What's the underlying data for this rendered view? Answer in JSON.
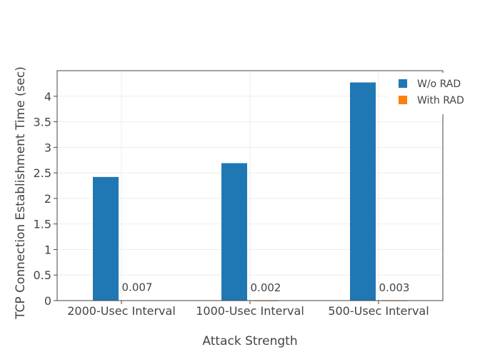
{
  "chart_data": {
    "type": "bar",
    "title": "",
    "xlabel": "Attack Strength",
    "ylabel": "TCP Connection Establishment Time (sec)",
    "categories": [
      "2000-Usec Interval",
      "1000-Usec Interval",
      "500-Usec Interval"
    ],
    "series": [
      {
        "name": "W/o RAD",
        "color": "#1f77b4",
        "values": [
          2.42,
          2.69,
          4.27
        ]
      },
      {
        "name": "With RAD",
        "color": "#ff7f0e",
        "values": [
          0.007,
          0.002,
          0.003
        ]
      }
    ],
    "data_labels": [
      "0.007",
      "0.002",
      "0.003"
    ],
    "ylim": [
      0,
      4.5
    ],
    "yticks": [
      0,
      0.5,
      1,
      1.5,
      2,
      2.5,
      3,
      3.5,
      4
    ],
    "ytick_labels": [
      "0",
      "0.5",
      "1",
      "1.5",
      "2",
      "2.5",
      "3",
      "3.5",
      "4"
    ],
    "grid": true,
    "legend_position": "top-right"
  }
}
